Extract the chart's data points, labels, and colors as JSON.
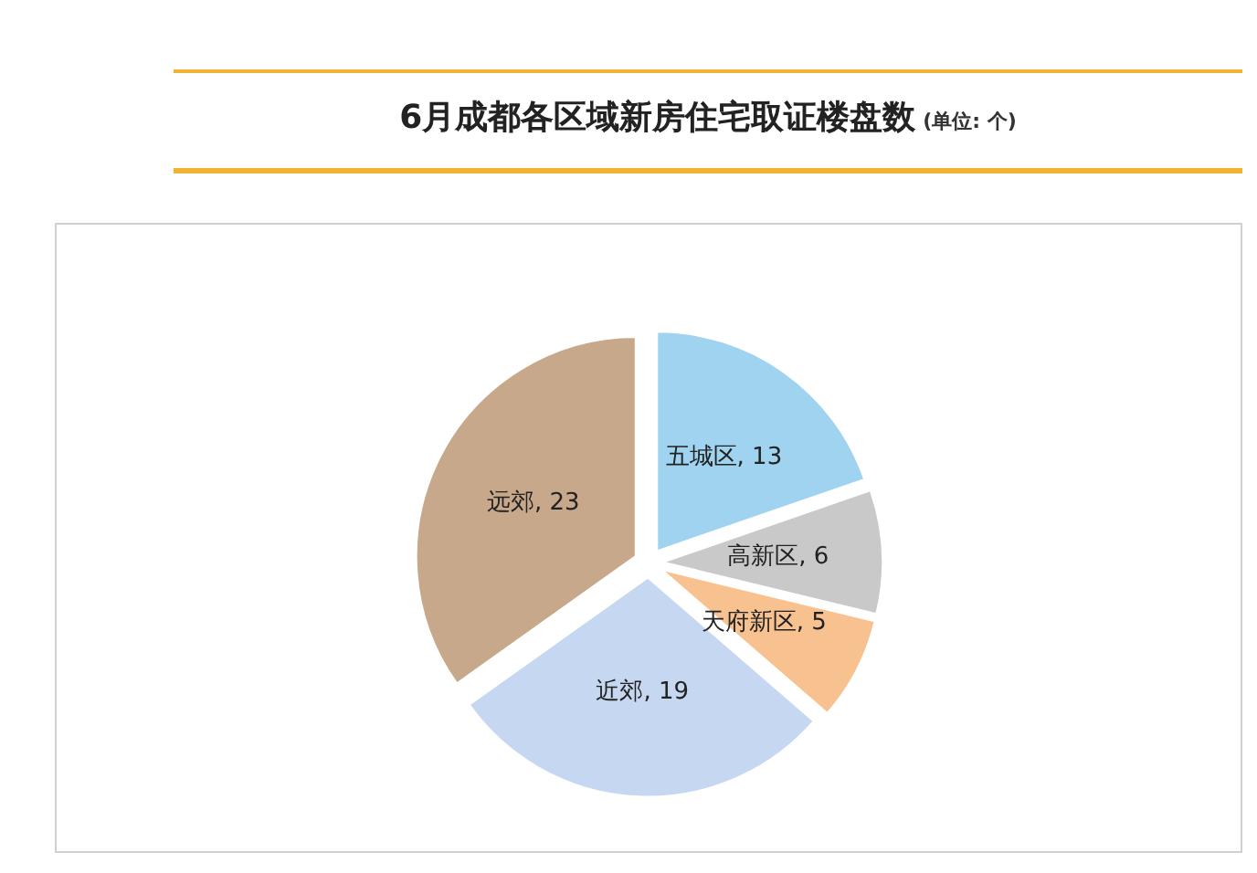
{
  "chart_data": {
    "type": "pie",
    "title": "6月成都各区域新房住宅取证楼盘数",
    "subtitle": "(单位: 个)",
    "categories": [
      "五城区",
      "高新区",
      "天府新区",
      "近郊",
      "远郊"
    ],
    "values": [
      13,
      6,
      5,
      19,
      23
    ],
    "value_labels": [
      ", 13",
      ", 6",
      ", 5",
      ", 19",
      ", 23"
    ],
    "colors": [
      "#9fd3ef",
      "#c9c9c9",
      "#f8c290",
      "#c6d8f1",
      "#c8a88a"
    ],
    "legend": false
  }
}
